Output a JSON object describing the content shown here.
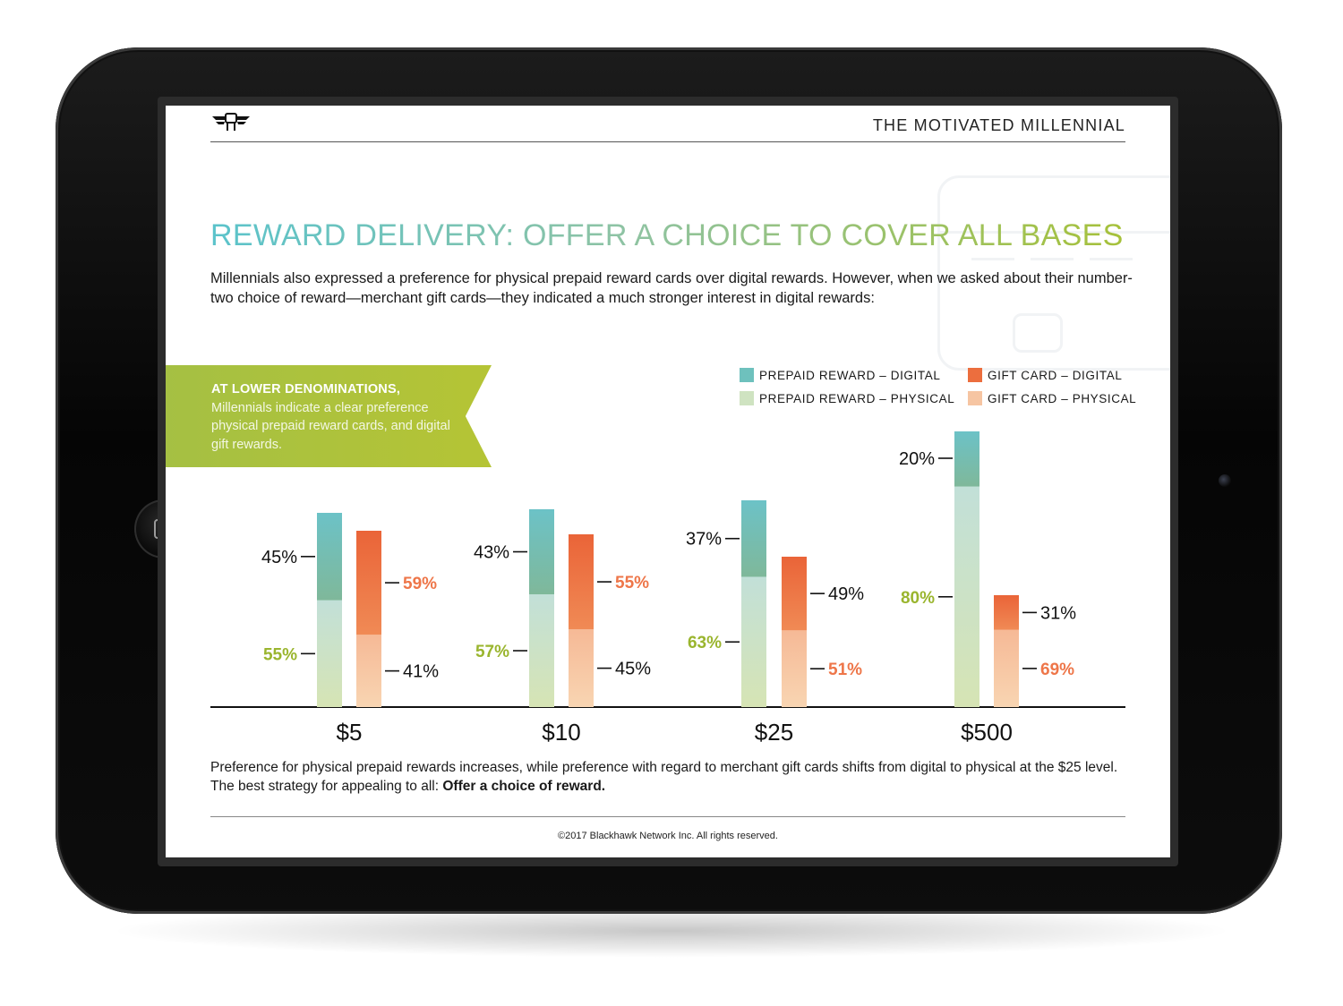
{
  "brand": {
    "title": "THE MOTIVATED MILLENNIAL",
    "logo_icon": "winged-fist-icon"
  },
  "headline": "REWARD DELIVERY: OFFER A CHOICE TO COVER ALL BASES",
  "intro": "Millennials also expressed a preference for physical prepaid reward cards over digital rewards. However, when we asked about their number-two choice of reward—merchant gift cards—they indicated a much stronger interest in digital rewards:",
  "callout": {
    "heading": "AT LOWER DENOMINATIONS,",
    "body": "Millennials indicate a clear preference physical prepaid reward cards, and digital gift rewards."
  },
  "note": {
    "text": "Preference for physical prepaid rewards increases, while preference with regard to merchant gift cards shifts from digital to physical at the $25 level. The best strategy for appealing to all: ",
    "emphasis": "Offer a choice of reward."
  },
  "copyright": "©2017 Blackhawk Network Inc. All rights reserved.",
  "colors": {
    "prepaid_digital": "#6ec1bd",
    "prepaid_physical": "#cfe3c1",
    "gift_digital": "#ec6e3e",
    "gift_physical": "#f6c5a2",
    "green_label": "#9ab52e",
    "orange_label": "#ee7649"
  },
  "chart_data": {
    "type": "bar",
    "stacked": true,
    "categories": [
      "$5",
      "$10",
      "$25",
      "$500"
    ],
    "groups": [
      {
        "name": "Prepaid Reward",
        "series": [
          {
            "name": "PREPAID REWARD – PHYSICAL",
            "values": [
              55,
              57,
              63,
              80
            ],
            "labels": [
              "55%",
              "57%",
              "63%",
              "80%"
            ]
          },
          {
            "name": "PREPAID REWARD – DIGITAL",
            "values": [
              45,
              43,
              37,
              20
            ],
            "labels": [
              "45%",
              "43%",
              "37%",
              "20%"
            ]
          }
        ]
      },
      {
        "name": "Gift Card",
        "series": [
          {
            "name": "GIFT CARD – PHYSICAL",
            "values": [
              41,
              45,
              51,
              69
            ],
            "labels": [
              "41%",
              "45%",
              "51%",
              "69%"
            ]
          },
          {
            "name": "GIFT CARD – DIGITAL",
            "values": [
              59,
              55,
              49,
              31
            ],
            "labels": [
              "59%",
              "55%",
              "49%",
              "31%"
            ]
          }
        ]
      }
    ],
    "legend": [
      {
        "name": "PREPAID REWARD – DIGITAL",
        "color": "#6ec1bd"
      },
      {
        "name": "GIFT CARD – DIGITAL",
        "color": "#ec6e3e"
      },
      {
        "name": "PREPAID REWARD – PHYSICAL",
        "color": "#cfe3c1"
      },
      {
        "name": "GIFT CARD – PHYSICAL",
        "color": "#f6c5a2"
      }
    ],
    "legend_position": "top-right",
    "title": "",
    "xlabel": "",
    "ylabel": "",
    "grid": false
  }
}
